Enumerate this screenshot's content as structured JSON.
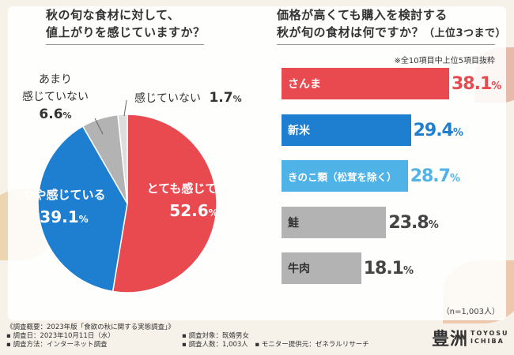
{
  "left_title": {
    "line1": "秋の旬な食材に対して、",
    "line2": "値上がりを感じていますか？"
  },
  "right_title": {
    "line1": "価格が高くても購入を検討する",
    "line2_main": "秋が旬の食材は何ですか？",
    "line2_sub": "（上位3つまで）"
  },
  "note": "※全10項目中上位5項目抜粋",
  "count": "（n=1,003人）",
  "chart_data": [
    {
      "type": "pie",
      "title": "秋の旬な食材に対して、値上がりを感じていますか？",
      "slices": [
        {
          "label": "とても感じている",
          "value": 52.6,
          "display": "52.6",
          "unit": "%",
          "color": "#e84a50"
        },
        {
          "label": "やや感じている",
          "value": 39.1,
          "display": "39.1",
          "unit": "%",
          "color": "#1e7fd0"
        },
        {
          "label_lines": [
            "あまり",
            "感じていない"
          ],
          "value": 6.6,
          "display": "6.6",
          "unit": "%",
          "color": "#b3b3b3"
        },
        {
          "label": "感じていない",
          "value": 1.7,
          "display": "1.7",
          "unit": "%",
          "color": "#dddddd"
        }
      ]
    },
    {
      "type": "bar",
      "orientation": "horizontal",
      "title": "価格が高くても購入を検討する秋が旬の食材は何ですか？（上位3つまで）",
      "categories": [
        "さんま",
        "新米",
        "きのこ類（松茸を除く）",
        "鮭",
        "牛肉"
      ],
      "values": [
        38.1,
        29.4,
        28.7,
        23.8,
        18.1
      ],
      "display": [
        "38.1",
        "29.4",
        "28.7",
        "23.8",
        "18.1"
      ],
      "unit": "%",
      "colors": [
        "#e84a50",
        "#1e7fd0",
        "#4fb3e8",
        "#b3b3b3",
        "#b3b3b3"
      ],
      "value_colors": [
        "#e84a50",
        "#1e7fd0",
        "#4fb3e8",
        "#444444",
        "#444444"
      ],
      "xlim": [
        0,
        38.1
      ]
    }
  ],
  "footer": {
    "survey": "《調査概要：2023年版「食欲の秋に関する実態調査」》",
    "date": "調査日：2023年10月11日（水）",
    "target": "調査対象：既婚男女",
    "method": "調査方法：インターネット調査",
    "people": "調査人数：1,003人",
    "provider": "モニター提供元：ゼネラルリサーチ"
  },
  "logo": {
    "kanji": "豊洲",
    "line1": "TOYOSU",
    "line2": "ICHIBA"
  }
}
